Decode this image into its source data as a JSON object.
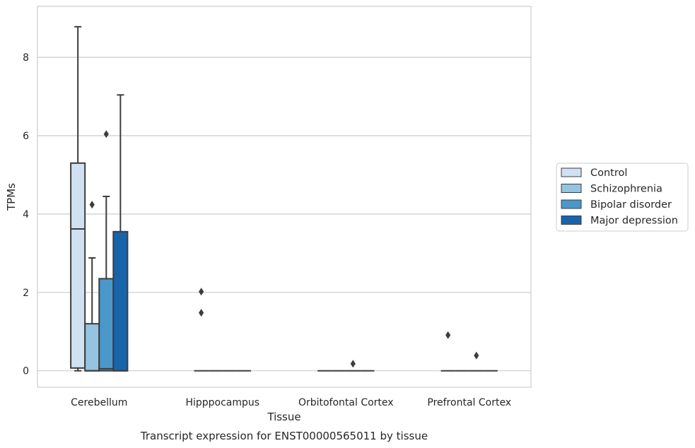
{
  "chart_data": {
    "type": "box",
    "title": "Transcript expression for ENST00000565011 by tissue",
    "xlabel": "Tissue",
    "ylabel": "TPMs",
    "ylim": [
      -0.42,
      9.3
    ],
    "yticks": [
      0,
      2,
      4,
      6,
      8
    ],
    "categories": [
      "Cerebellum",
      "Hipppocampus",
      "Orbitofontal Cortex",
      "Prefrontal Cortex"
    ],
    "grid": "horizontal",
    "legend_position": "right",
    "series": [
      {
        "name": "Control",
        "color": "#d0e1f2",
        "boxes": [
          {
            "q1": 0.07,
            "median": 3.62,
            "q3": 5.3,
            "whisker_low": 0.0,
            "whisker_high": 8.78,
            "outliers": []
          },
          {
            "q1": 0,
            "median": 0,
            "q3": 0,
            "whisker_low": 0,
            "whisker_high": 0,
            "outliers": [
              2.02,
              1.48
            ]
          },
          {
            "q1": 0,
            "median": 0,
            "q3": 0,
            "whisker_low": 0,
            "whisker_high": 0,
            "outliers": []
          },
          {
            "q1": 0,
            "median": 0,
            "q3": 0,
            "whisker_low": 0,
            "whisker_high": 0,
            "outliers": [
              0.91
            ]
          }
        ]
      },
      {
        "name": "Schizophrenia",
        "color": "#94c4df",
        "boxes": [
          {
            "q1": 0.0,
            "median": 0.0,
            "q3": 1.2,
            "whisker_low": 0.0,
            "whisker_high": 2.88,
            "outliers": [
              4.24
            ]
          },
          {
            "q1": 0,
            "median": 0,
            "q3": 0,
            "whisker_low": 0,
            "whisker_high": 0,
            "outliers": []
          },
          {
            "q1": 0,
            "median": 0,
            "q3": 0,
            "whisker_low": 0,
            "whisker_high": 0,
            "outliers": []
          },
          {
            "q1": 0,
            "median": 0,
            "q3": 0,
            "whisker_low": 0,
            "whisker_high": 0,
            "outliers": []
          }
        ]
      },
      {
        "name": "Bipolar disorder",
        "color": "#4a98c9",
        "boxes": [
          {
            "q1": 0.0,
            "median": 0.05,
            "q3": 2.35,
            "whisker_low": 0.0,
            "whisker_high": 4.45,
            "outliers": [
              6.04
            ]
          },
          {
            "q1": 0,
            "median": 0,
            "q3": 0,
            "whisker_low": 0,
            "whisker_high": 0,
            "outliers": []
          },
          {
            "q1": 0,
            "median": 0,
            "q3": 0,
            "whisker_low": 0,
            "whisker_high": 0,
            "outliers": [
              0.18
            ]
          },
          {
            "q1": 0,
            "median": 0,
            "q3": 0,
            "whisker_low": 0,
            "whisker_high": 0,
            "outliers": [
              0.39
            ]
          }
        ]
      },
      {
        "name": "Major depression",
        "color": "#1764ab",
        "boxes": [
          {
            "q1": 0.0,
            "median": 0.0,
            "q3": 3.55,
            "whisker_low": 0.0,
            "whisker_high": 7.04,
            "outliers": []
          },
          {
            "q1": 0,
            "median": 0,
            "q3": 0,
            "whisker_low": 0,
            "whisker_high": 0,
            "outliers": []
          },
          {
            "q1": 0,
            "median": 0,
            "q3": 0,
            "whisker_low": 0,
            "whisker_high": 0,
            "outliers": []
          },
          {
            "q1": 0,
            "median": 0,
            "q3": 0,
            "whisker_low": 0,
            "whisker_high": 0,
            "outliers": []
          }
        ]
      }
    ]
  }
}
